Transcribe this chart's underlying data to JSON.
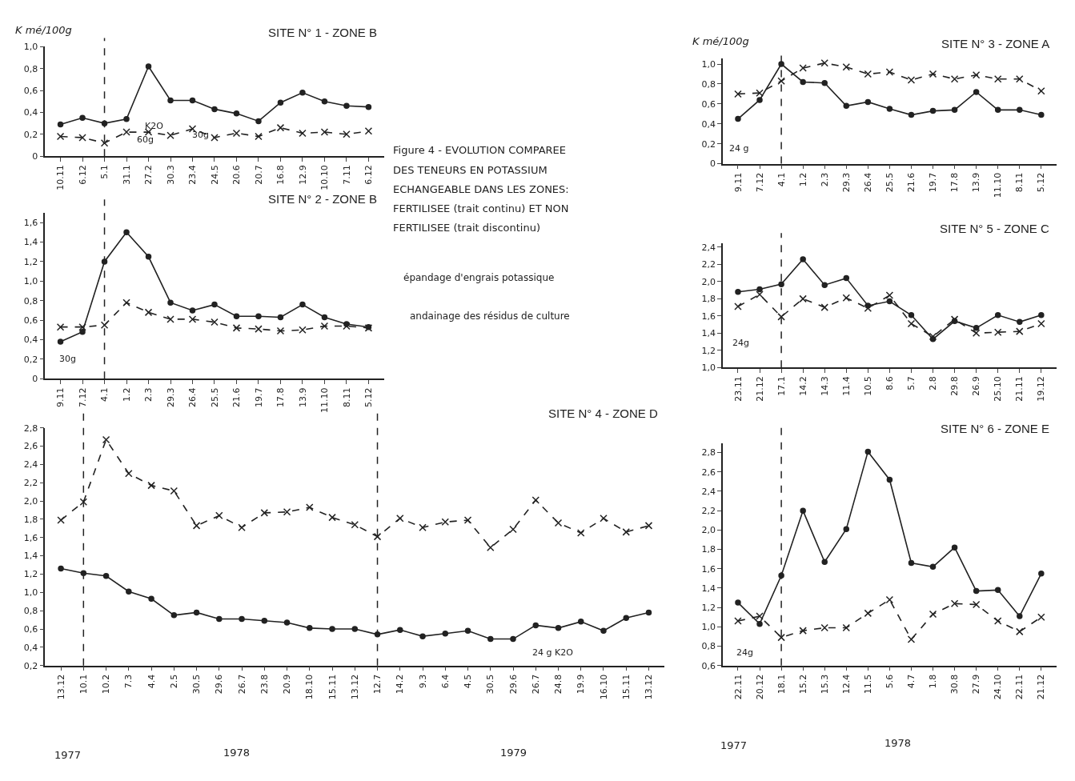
{
  "chart_data": [
    {
      "type": "line",
      "title": "SITE N° 1 - ZONE B",
      "ylabel": "K mé/100g",
      "categories": [
        "10.11",
        "6.12",
        "5.1",
        "31.1",
        "27.2",
        "30.3",
        "23.4",
        "24.5",
        "20.6",
        "20.7",
        "16.8",
        "12.9",
        "10.10",
        "7.11",
        "6.12"
      ],
      "series": [
        {
          "color": "#222222",
          "line_style": "solid",
          "marker": "circle",
          "values": [
            0.29,
            0.35,
            0.3,
            0.34,
            0.82,
            0.51,
            0.51,
            0.43,
            0.39,
            0.32,
            0.49,
            0.58,
            0.5,
            0.46,
            0.45
          ]
        },
        {
          "color": "#222222",
          "line_style": "dashed",
          "marker": "cross",
          "values": [
            0.18,
            0.17,
            0.12,
            0.22,
            0.22,
            0.19,
            0.25,
            0.17,
            0.21,
            0.18,
            0.26,
            0.21,
            0.22,
            0.2,
            0.23
          ]
        }
      ],
      "ylim": [
        0,
        1.0
      ],
      "yticks": [
        {
          "value": 0,
          "label": "0"
        },
        {
          "value": 0.2,
          "label": "0,2"
        },
        {
          "value": 0.4,
          "label": "0,4"
        },
        {
          "value": 0.6,
          "label": "0,6"
        },
        {
          "value": 0.8,
          "label": "0,8"
        },
        {
          "value": 1.0,
          "label": "1,0"
        }
      ],
      "ref_lines": [
        {
          "axis": "x",
          "value": "5.1",
          "line_style": "dashed",
          "color": "#222222"
        }
      ],
      "annotations": [
        "K2O",
        "60g",
        "30g",
        "Figure 4 - EVOLUTION COMPAREE",
        "DES TENEURS EN POTASSIUM",
        "ECHANGEABLE DANS LES ZONES:",
        "FERTILISEE (trait continu) ET NON",
        "FERTILISEE (trait discontinu)",
        "épandage d'engrais potassique",
        "andainage des résidus de culture"
      ]
    },
    {
      "type": "line",
      "title": "SITE N° 3 - ZONE A",
      "ylabel": "K mé/100g",
      "categories": [
        "9.11",
        "7.12",
        "4.1",
        "1.2",
        "2.3",
        "29.3",
        "26.4",
        "25.5",
        "21.6",
        "19.7",
        "17.8",
        "13.9",
        "11.10",
        "8.11",
        "5.12"
      ],
      "series": [
        {
          "color": "#222222",
          "line_style": "solid",
          "marker": "circle",
          "values": [
            0.45,
            0.64,
            1.0,
            0.82,
            0.81,
            0.58,
            0.62,
            0.55,
            0.49,
            0.53,
            0.54,
            0.72,
            0.54,
            0.54,
            0.49
          ]
        },
        {
          "color": "#222222",
          "line_style": "dashed",
          "marker": "cross",
          "values": [
            0.7,
            0.71,
            0.83,
            0.96,
            1.01,
            0.97,
            0.9,
            0.92,
            0.84,
            0.9,
            0.85,
            0.89,
            0.85,
            0.85,
            0.73
          ]
        }
      ],
      "ylim": [
        0,
        1.06
      ],
      "yticks": [
        {
          "value": 0,
          "label": "0"
        },
        {
          "value": 0.2,
          "label": "0,2"
        },
        {
          "value": 0.4,
          "label": "0,4"
        },
        {
          "value": 0.6,
          "label": "0,6"
        },
        {
          "value": 0.8,
          "label": "0,8"
        },
        {
          "value": 1.0,
          "label": "1,0"
        }
      ],
      "ref_lines": [
        {
          "axis": "x",
          "value": "4.1",
          "line_style": "dashed",
          "color": "#222222"
        }
      ],
      "annotations": [
        "24 g"
      ]
    },
    {
      "type": "line",
      "title": "SITE N° 2 - ZONE B",
      "categories": [
        "9.11",
        "7.12",
        "4.1",
        "1.2",
        "2.3",
        "29.3",
        "26.4",
        "25.5",
        "21.6",
        "19.7",
        "17.8",
        "13.9",
        "11.10",
        "8.11",
        "5.12"
      ],
      "series": [
        {
          "color": "#222222",
          "line_style": "solid",
          "marker": "circle",
          "values": [
            0.38,
            0.48,
            1.2,
            1.5,
            1.25,
            0.78,
            0.7,
            0.76,
            0.64,
            0.64,
            0.63,
            0.76,
            0.63,
            0.56,
            0.53
          ]
        },
        {
          "color": "#222222",
          "line_style": "dashed",
          "marker": "cross",
          "values": [
            0.53,
            0.53,
            0.55,
            0.78,
            0.68,
            0.61,
            0.61,
            0.58,
            0.52,
            0.51,
            0.49,
            0.5,
            0.54,
            0.54,
            0.52
          ]
        }
      ],
      "ylim": [
        0,
        1.7
      ],
      "yticks": [
        {
          "value": 0,
          "label": "0"
        },
        {
          "value": 0.2,
          "label": "0,2"
        },
        {
          "value": 0.4,
          "label": "0,4"
        },
        {
          "value": 0.6,
          "label": "0,6"
        },
        {
          "value": 0.8,
          "label": "0,8"
        },
        {
          "value": 1.0,
          "label": "1,0"
        },
        {
          "value": 1.2,
          "label": "1,2"
        },
        {
          "value": 1.4,
          "label": "1,4"
        },
        {
          "value": 1.6,
          "label": "1,6"
        }
      ],
      "ref_lines": [
        {
          "axis": "x",
          "value": "4.1",
          "line_style": "dashed",
          "color": "#222222"
        }
      ],
      "annotations": [
        "30g"
      ]
    },
    {
      "type": "line",
      "title": "SITE N° 5 - ZONE C",
      "categories": [
        "23.11",
        "21.12",
        "17.1",
        "14.2",
        "14.3",
        "11.4",
        "10.5",
        "8.6",
        "5.7",
        "2.8",
        "29.8",
        "26.9",
        "25.10",
        "21.11",
        "19.12"
      ],
      "series": [
        {
          "color": "#222222",
          "line_style": "solid",
          "marker": "circle",
          "values": [
            1.88,
            1.91,
            1.97,
            2.26,
            1.96,
            2.04,
            1.72,
            1.77,
            1.61,
            1.33,
            1.54,
            1.46,
            1.61,
            1.53,
            1.61
          ]
        },
        {
          "color": "#222222",
          "line_style": "dashed",
          "marker": "cross",
          "values": [
            1.71,
            1.85,
            1.59,
            1.8,
            1.7,
            1.81,
            1.69,
            1.84,
            1.51,
            1.36,
            1.56,
            1.4,
            1.41,
            1.42,
            1.51
          ]
        }
      ],
      "ylim": [
        1.0,
        2.45
      ],
      "yticks": [
        {
          "value": 1.0,
          "label": "1,0"
        },
        {
          "value": 1.2,
          "label": "1,2"
        },
        {
          "value": 1.4,
          "label": "1,4"
        },
        {
          "value": 1.6,
          "label": "1,6"
        },
        {
          "value": 1.8,
          "label": "1,8"
        },
        {
          "value": 2.0,
          "label": "2,0"
        },
        {
          "value": 2.2,
          "label": "2,2"
        },
        {
          "value": 2.4,
          "label": "2,4"
        }
      ],
      "ref_lines": [
        {
          "axis": "x",
          "value": "17.1",
          "line_style": "dashed",
          "color": "#222222"
        }
      ],
      "annotations": [
        "24g"
      ]
    },
    {
      "type": "line",
      "title": "SITE N° 4 - ZONE D",
      "categories": [
        "13.12",
        "10.1",
        "10.2",
        "7.3",
        "4.4",
        "2.5",
        "30.5",
        "29.6",
        "26.7",
        "23.8",
        "20.9",
        "18.10",
        "15.11",
        "13.12",
        "12.7",
        "14.2",
        "9.3",
        "6.4",
        "4.5",
        "30.5",
        "29.6",
        "26.7",
        "24.8",
        "19.9",
        "16.10",
        "15.11",
        "13.12"
      ],
      "series": [
        {
          "color": "#222222",
          "line_style": "solid",
          "marker": "circle",
          "values": [
            1.26,
            1.21,
            1.18,
            1.01,
            0.93,
            0.75,
            0.78,
            0.71,
            0.71,
            0.69,
            0.67,
            0.61,
            0.6,
            0.6,
            0.54,
            0.59,
            0.52,
            0.55,
            0.58,
            0.49,
            0.49,
            0.64,
            0.61,
            0.68,
            0.58,
            0.72,
            0.78
          ]
        },
        {
          "color": "#222222",
          "line_style": "dashed",
          "marker": "cross",
          "values": [
            1.79,
            1.99,
            2.67,
            2.3,
            2.17,
            2.11,
            1.73,
            1.84,
            1.71,
            1.87,
            1.88,
            1.93,
            1.82,
            1.74,
            1.61,
            1.81,
            1.71,
            1.77,
            1.79,
            1.49,
            1.69,
            2.01,
            1.76,
            1.65,
            1.81,
            1.66,
            1.73
          ]
        }
      ],
      "ylim": [
        0.2,
        2.8
      ],
      "yticks": [
        {
          "value": 0.2,
          "label": "0,2"
        },
        {
          "value": 0.4,
          "label": "0,4"
        },
        {
          "value": 0.6,
          "label": "0,6"
        },
        {
          "value": 0.8,
          "label": "0,8"
        },
        {
          "value": 1.0,
          "label": "1,0"
        },
        {
          "value": 1.2,
          "label": "1,2"
        },
        {
          "value": 1.4,
          "label": "1,4"
        },
        {
          "value": 1.6,
          "label": "1,6"
        },
        {
          "value": 1.8,
          "label": "1,8"
        },
        {
          "value": 2.0,
          "label": "2,0"
        },
        {
          "value": 2.2,
          "label": "2,2"
        },
        {
          "value": 2.4,
          "label": "2,4"
        },
        {
          "value": 2.6,
          "label": "2,6"
        },
        {
          "value": 2.8,
          "label": "2,8"
        }
      ],
      "ref_lines": [
        {
          "axis": "x",
          "value": "10.1",
          "line_style": "dashed",
          "color": "#222222"
        },
        {
          "axis": "x",
          "value": "12.7",
          "line_style": "dashed",
          "color": "#222222"
        }
      ],
      "annotations": [
        "24 g K2O",
        "1977",
        "1978",
        "1979"
      ]
    },
    {
      "type": "line",
      "title": "SITE N° 6 - ZONE E",
      "categories": [
        "22.11",
        "20.12",
        "18.1",
        "15.2",
        "15.3",
        "12.4",
        "11.5",
        "5.6",
        "4.7",
        "1.8",
        "30.8",
        "27.9",
        "24.10",
        "22.11",
        "21.12"
      ],
      "series": [
        {
          "color": "#222222",
          "line_style": "solid",
          "marker": "circle",
          "values": [
            1.25,
            1.03,
            1.53,
            2.2,
            1.67,
            2.01,
            2.81,
            2.52,
            1.66,
            1.62,
            1.82,
            1.37,
            1.38,
            1.11,
            1.55
          ]
        },
        {
          "color": "#222222",
          "line_style": "dashed",
          "marker": "cross",
          "values": [
            1.06,
            1.11,
            0.89,
            0.96,
            0.99,
            0.99,
            1.14,
            1.28,
            0.87,
            1.13,
            1.24,
            1.23,
            1.06,
            0.95,
            1.1
          ]
        }
      ],
      "ylim": [
        0.6,
        2.9
      ],
      "yticks": [
        {
          "value": 0.6,
          "label": "0,6"
        },
        {
          "value": 0.8,
          "label": "0,8"
        },
        {
          "value": 1.0,
          "label": "1,0"
        },
        {
          "value": 1.2,
          "label": "1,2"
        },
        {
          "value": 1.4,
          "label": "1,4"
        },
        {
          "value": 1.6,
          "label": "1,6"
        },
        {
          "value": 1.8,
          "label": "1,8"
        },
        {
          "value": 2.0,
          "label": "2,0"
        },
        {
          "value": 2.2,
          "label": "2,2"
        },
        {
          "value": 2.4,
          "label": "2,4"
        },
        {
          "value": 2.6,
          "label": "2,6"
        },
        {
          "value": 2.8,
          "label": "2,8"
        }
      ],
      "ref_lines": [
        {
          "axis": "x",
          "value": "18.1",
          "line_style": "dashed",
          "color": "#222222"
        }
      ],
      "annotations": [
        "24g",
        "1977",
        "1978"
      ]
    }
  ]
}
